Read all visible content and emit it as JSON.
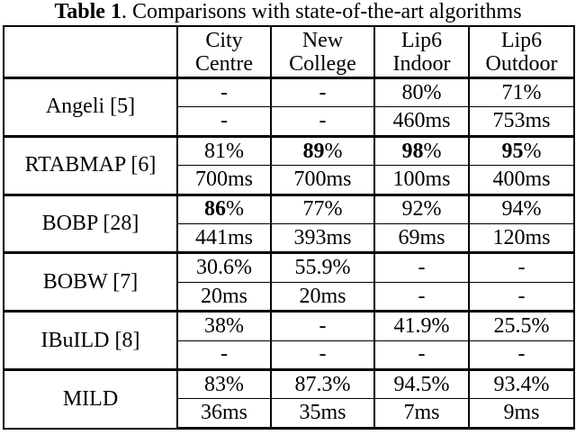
{
  "caption": {
    "bold_part": "Table 1",
    "rest": ". Comparisons with state-of-the-art algorithms"
  },
  "colors": {
    "text": "#000000",
    "background": "#ffffff",
    "border": "#000000"
  },
  "table": {
    "corner_label": "",
    "headers": [
      {
        "line1": "City",
        "line2": "Centre"
      },
      {
        "line1": "New",
        "line2": "College"
      },
      {
        "line1": "Lip6",
        "line2": "Indoor"
      },
      {
        "line1": "Lip6",
        "line2": "Outdoor"
      }
    ],
    "groups": [
      {
        "algorithm": "Angeli [5]",
        "recall": [
          "-",
          "-",
          "80%",
          "71%"
        ],
        "recall_bold": [
          false,
          false,
          false,
          false
        ],
        "time": [
          "-",
          "-",
          "460ms",
          "753ms"
        ]
      },
      {
        "algorithm": "RTABMAP [6]",
        "recall": [
          "81%",
          "89%",
          "98%",
          "95%"
        ],
        "recall_bold": [
          false,
          true,
          true,
          true
        ],
        "time": [
          "700ms",
          "700ms",
          "100ms",
          "400ms"
        ]
      },
      {
        "algorithm": "BOBP [28]",
        "recall": [
          "86%",
          "77%",
          "92%",
          "94%"
        ],
        "recall_bold": [
          true,
          false,
          false,
          false
        ],
        "time": [
          "441ms",
          "393ms",
          "69ms",
          "120ms"
        ]
      },
      {
        "algorithm": "BOBW [7]",
        "recall": [
          "30.6%",
          "55.9%",
          "-",
          "-"
        ],
        "recall_bold": [
          false,
          false,
          false,
          false
        ],
        "time": [
          "20ms",
          "20ms",
          "-",
          "-"
        ]
      },
      {
        "algorithm": "IBuILD [8]",
        "recall": [
          "38%",
          "-",
          "41.9%",
          "25.5%"
        ],
        "recall_bold": [
          false,
          false,
          false,
          false
        ],
        "time": [
          "-",
          "-",
          "-",
          "-"
        ]
      },
      {
        "algorithm": "MILD",
        "recall": [
          "83%",
          "87.3%",
          "94.5%",
          "93.4%"
        ],
        "recall_bold": [
          false,
          false,
          false,
          false
        ],
        "time": [
          "36ms",
          "35ms",
          "7ms",
          "9ms"
        ]
      }
    ]
  }
}
